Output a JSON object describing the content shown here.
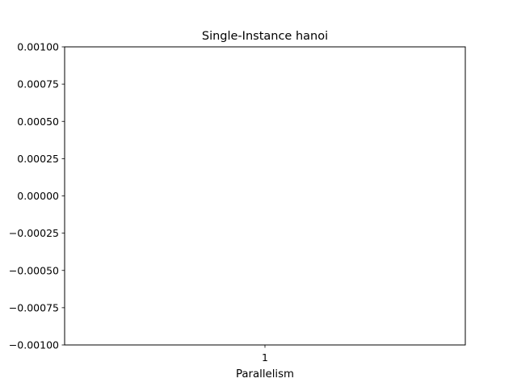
{
  "chart_data": {
    "type": "bar",
    "title": "Single-Instance hanoi",
    "xlabel": "Parallelism",
    "ylabel": "",
    "categories": [
      "1"
    ],
    "series": [],
    "ylim": [
      -0.001,
      0.001
    ],
    "yticks": [
      -0.001,
      -0.00075,
      -0.0005,
      -0.00025,
      0,
      0.00025,
      0.0005,
      0.00075,
      0.001
    ],
    "ytick_labels": [
      "−0.00100",
      "−0.00075",
      "−0.00050",
      "−0.00025",
      "0.00000",
      "0.00025",
      "0.00050",
      "0.00075",
      "0.00100"
    ],
    "grid": false,
    "legend": "none"
  },
  "colors": {
    "axes": "#000000",
    "background": "#ffffff"
  }
}
